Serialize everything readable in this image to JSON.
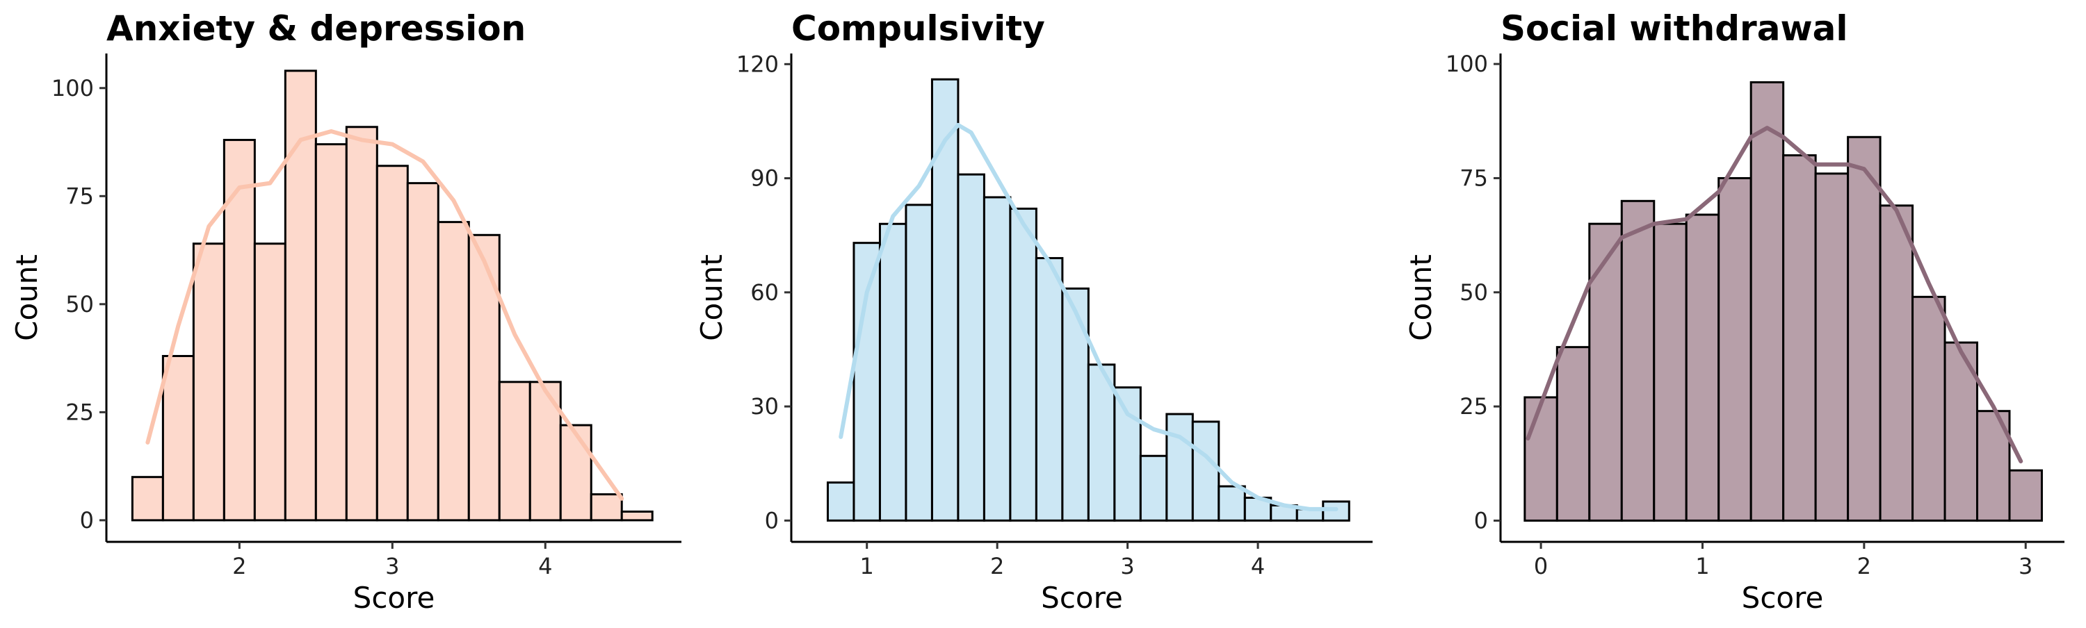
{
  "chart_data": [
    {
      "type": "histogram",
      "title": "Anxiety & depression",
      "x_label": "Score",
      "y_label": "Count",
      "bins": [
        1.3,
        1.5,
        1.7,
        1.9,
        2.1,
        2.3,
        2.5,
        2.7,
        2.9,
        3.1,
        3.3,
        3.5,
        3.7,
        3.9,
        4.1,
        4.3,
        4.5,
        4.7
      ],
      "values": [
        10,
        38,
        64,
        88,
        64,
        104,
        87,
        91,
        82,
        78,
        69,
        66,
        32,
        32,
        22,
        6,
        2
      ],
      "color": "#fdd9cc",
      "line_color": "#fbc4ae",
      "kde": {
        "x": [
          1.4,
          1.6,
          1.8,
          2.0,
          2.2,
          2.4,
          2.6,
          2.8,
          3.0,
          3.2,
          3.4,
          3.6,
          3.8,
          4.0,
          4.2,
          4.4,
          4.5
        ],
        "values": [
          18,
          45,
          68,
          77,
          78,
          88,
          90,
          88,
          87,
          83,
          74,
          60,
          43,
          30,
          20,
          10,
          5
        ]
      },
      "xlim": [
        1.13,
        4.89
      ],
      "ylim": [
        -5,
        108
      ],
      "xticks": [
        2,
        3,
        4
      ],
      "yticks": [
        0,
        25,
        50,
        75,
        100
      ]
    },
    {
      "type": "histogram",
      "title": "Compulsivity",
      "x_label": "Score",
      "y_label": "Count",
      "bins": [
        0.7,
        0.9,
        1.1,
        1.3,
        1.5,
        1.7,
        1.9,
        2.1,
        2.3,
        2.5,
        2.7,
        2.9,
        3.1,
        3.3,
        3.5,
        3.7,
        3.9,
        4.1,
        4.3,
        4.5,
        4.7
      ],
      "values": [
        10,
        73,
        78,
        83,
        116,
        91,
        85,
        82,
        69,
        61,
        41,
        35,
        17,
        28,
        26,
        9,
        6,
        4,
        3,
        5
      ],
      "color": "#cce7f4",
      "line_color": "#b3dcef",
      "kde": {
        "x": [
          0.8,
          1.0,
          1.2,
          1.4,
          1.6,
          1.7,
          1.8,
          2.0,
          2.2,
          2.4,
          2.6,
          2.8,
          3.0,
          3.2,
          3.4,
          3.6,
          3.8,
          4.0,
          4.2,
          4.4,
          4.6
        ],
        "values": [
          22,
          60,
          80,
          88,
          100,
          104,
          102,
          90,
          78,
          68,
          55,
          40,
          28,
          24,
          22,
          17,
          10,
          6,
          4,
          3,
          3
        ]
      },
      "xlim": [
        0.42,
        4.88
      ],
      "ylim": [
        -5.6,
        122.8
      ],
      "xticks": [
        1,
        2,
        3,
        4
      ],
      "yticks": [
        0,
        30,
        60,
        90,
        120
      ]
    },
    {
      "type": "histogram",
      "title": "Social withdrawal",
      "x_label": "Score",
      "y_label": "Count",
      "bins": [
        -0.1,
        0.1,
        0.3,
        0.5,
        0.7,
        0.9,
        1.1,
        1.3,
        1.5,
        1.7,
        1.9,
        2.1,
        2.3,
        2.5,
        2.7,
        2.9,
        3.1
      ],
      "values": [
        27,
        38,
        65,
        70,
        65,
        67,
        75,
        96,
        80,
        76,
        84,
        69,
        49,
        39,
        24,
        11
      ],
      "color": "#b79fa9",
      "line_color": "#8a6878",
      "kde": {
        "x": [
          -0.08,
          0.1,
          0.3,
          0.5,
          0.7,
          0.9,
          1.1,
          1.3,
          1.4,
          1.5,
          1.7,
          1.9,
          2.0,
          2.2,
          2.4,
          2.6,
          2.8,
          2.97
        ],
        "values": [
          18,
          35,
          52,
          62,
          65,
          66,
          72,
          84,
          86,
          84,
          78,
          78,
          77,
          68,
          52,
          37,
          25,
          13
        ]
      },
      "xlim": [
        -0.25,
        3.24
      ],
      "ylim": [
        -4.65,
        102.3
      ],
      "xticks": [
        0,
        1,
        2,
        3
      ],
      "yticks": [
        0,
        25,
        50,
        75,
        100
      ]
    }
  ]
}
